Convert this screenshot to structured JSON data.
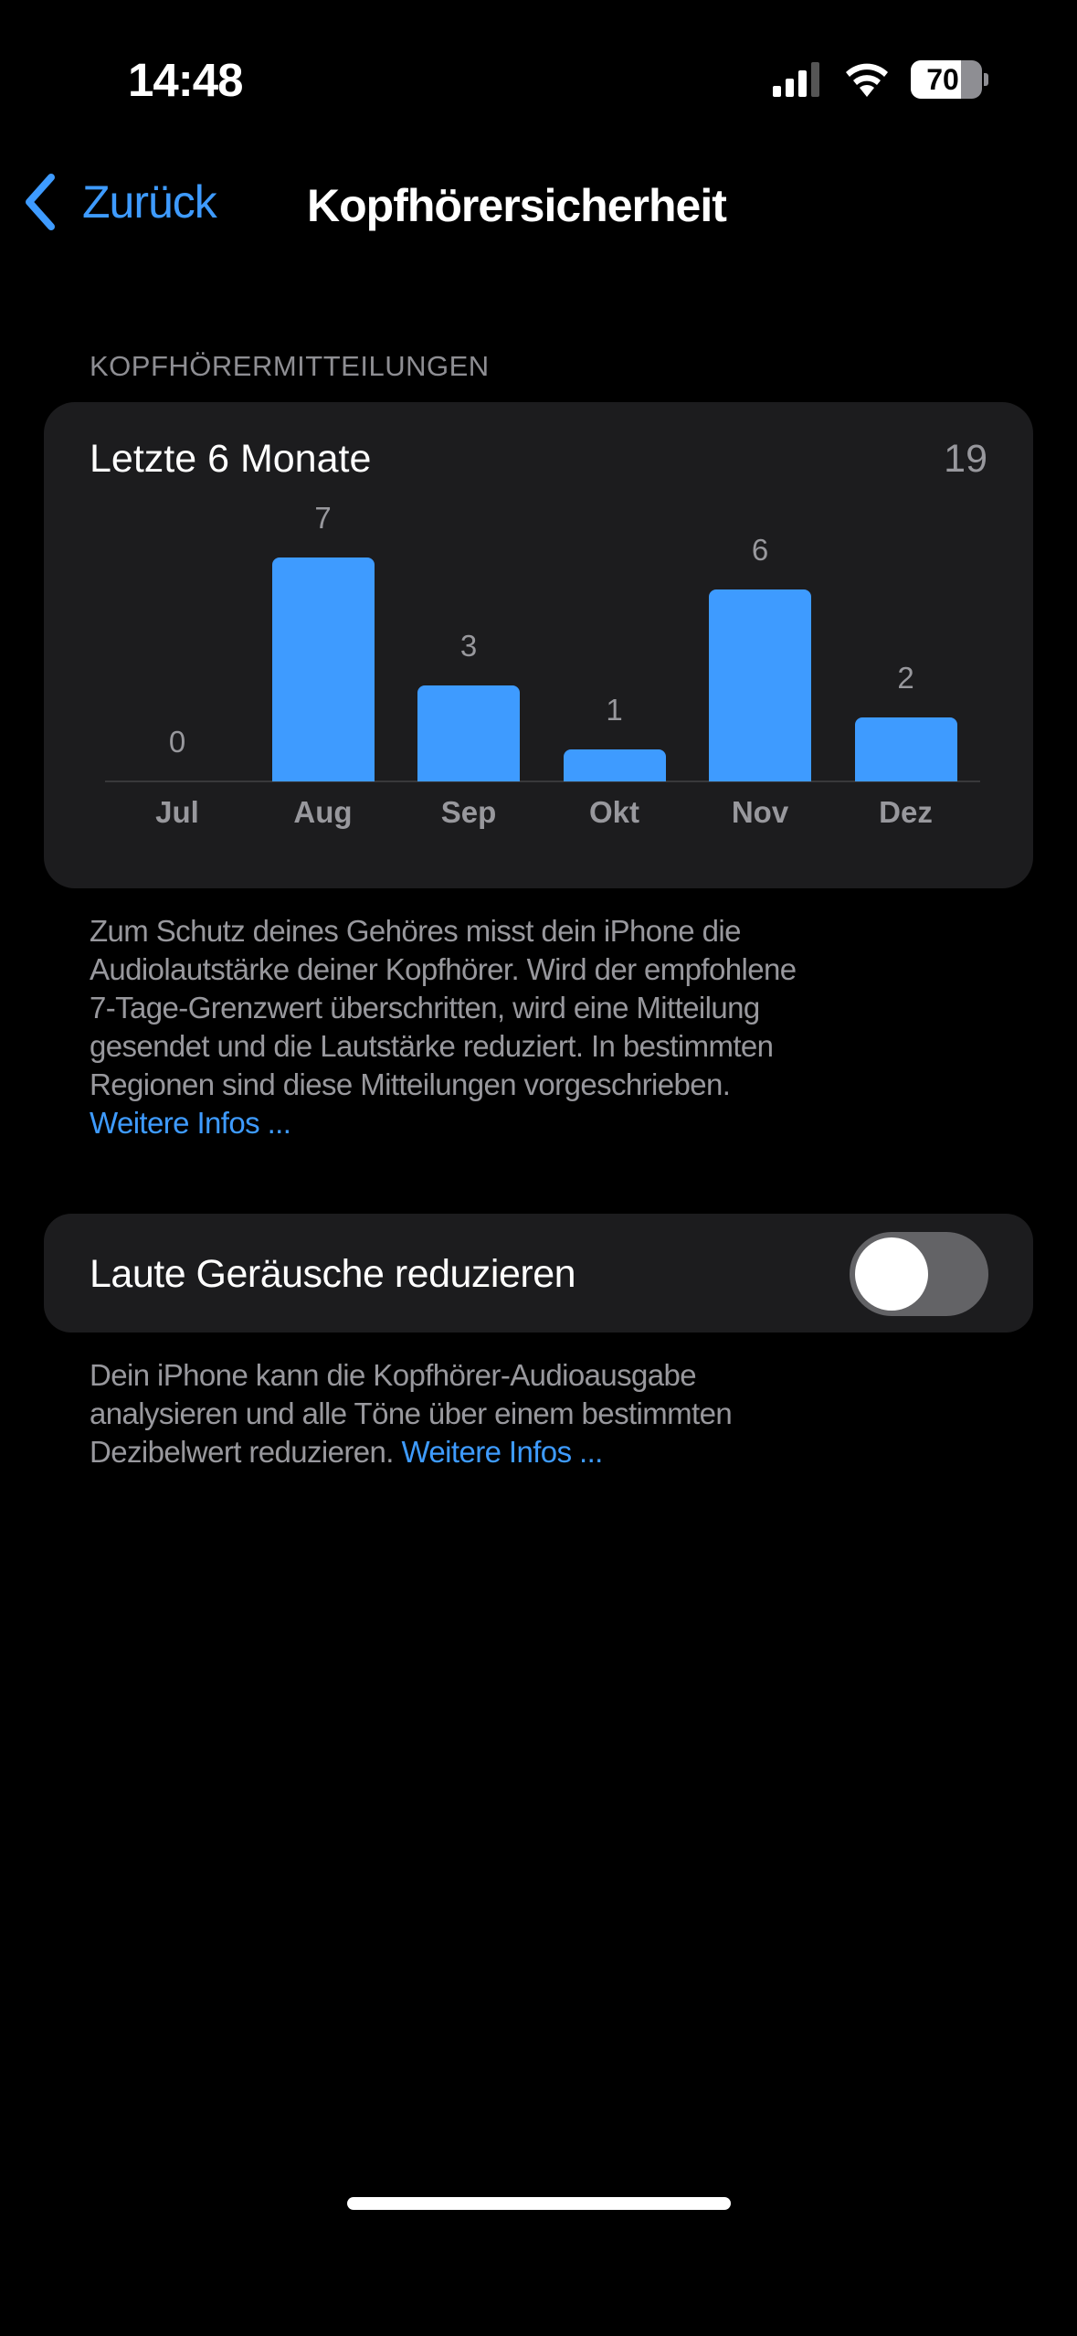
{
  "status_bar": {
    "time": "14:48",
    "battery": "70",
    "icons": [
      "cellular-signal-icon",
      "wifi-icon",
      "battery-icon"
    ]
  },
  "nav": {
    "back_label": "Zurück",
    "title": "Kopfhörersicherheit"
  },
  "section_header": "KOPFHÖRERMITTEILUNGEN",
  "chart_card": {
    "title": "Letzte 6 Monate",
    "total": "19"
  },
  "chart_data": {
    "type": "bar",
    "categories": [
      "Jul",
      "Aug",
      "Sep",
      "Okt",
      "Nov",
      "Dez"
    ],
    "values": [
      0,
      7,
      3,
      1,
      6,
      2
    ],
    "value_labels": [
      "0",
      "7",
      "3",
      "1",
      "6",
      "2"
    ],
    "bar_color": "#3e9bff",
    "data_labels": true,
    "grid": false
  },
  "footer1": {
    "lines": [
      "Zum Schutz deines Gehöres misst dein iPhone die",
      "Audiolautstärke deiner Kopfhörer. Wird der empfohlene",
      "7-Tage-Grenzwert überschritten, wird eine Mitteilung",
      "gesendet und die Lautstärke reduziert. In bestimmten",
      "Regionen sind diese Mitteilungen vorgeschrieben."
    ],
    "link": "Weitere Infos ..."
  },
  "loud_sounds": {
    "label": "Laute Geräusche reduzieren",
    "enabled": false
  },
  "footer2": {
    "lines": [
      "Dein iPhone kann die Kopfhörer-Audioausgabe",
      "analysieren und alle Töne über einem bestimmten",
      "Dezibelwert reduzieren."
    ],
    "link": "Weitere Infos ..."
  },
  "colors": {
    "accent": "#3e9bff",
    "card": "#1c1c1e",
    "secondary_text": "#98989d"
  }
}
